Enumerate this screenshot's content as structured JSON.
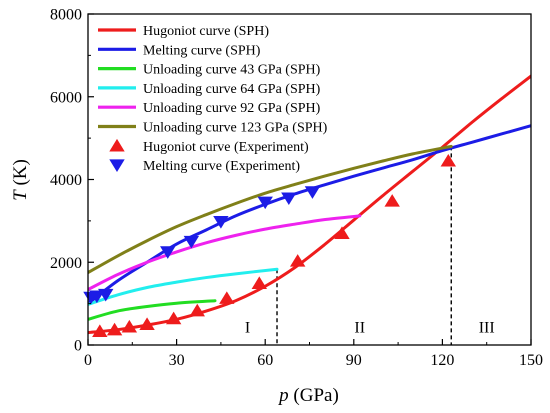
{
  "chart_data": {
    "type": "line",
    "xlabel": {
      "var": "p",
      "unit": " (GPa)"
    },
    "ylabel": {
      "var": "T",
      "unit": " (K)"
    },
    "xlim": [
      0,
      150
    ],
    "ylim": [
      0,
      8000
    ],
    "x_ticks": [
      0,
      30,
      60,
      90,
      120,
      150
    ],
    "y_ticks": [
      0,
      2000,
      4000,
      6000,
      8000
    ],
    "grid": false,
    "legend_position": "top-left",
    "series": [
      {
        "name": "Hugoniot curve (SPH)",
        "kind": "line",
        "color": "#ee1c1c",
        "x": [
          0,
          10,
          20,
          30,
          40,
          50,
          60,
          70,
          80,
          90,
          100,
          110,
          120,
          130,
          140,
          150
        ],
        "y": [
          300,
          370,
          480,
          620,
          820,
          1070,
          1420,
          1870,
          2420,
          3020,
          3620,
          4200,
          4780,
          5380,
          5950,
          6500
        ]
      },
      {
        "name": "Melting curve (SPH)",
        "kind": "line",
        "color": "#1c1ce6",
        "x": [
          0,
          10,
          20,
          30,
          40,
          50,
          60,
          70,
          80,
          90,
          100,
          110,
          120,
          130,
          140,
          150
        ],
        "y": [
          1000,
          1550,
          2000,
          2440,
          2780,
          3120,
          3400,
          3650,
          3870,
          4080,
          4280,
          4480,
          4700,
          4900,
          5100,
          5300
        ]
      },
      {
        "name": "Unloading curve 43 GPa (SPH)",
        "kind": "line",
        "color": "#22dd22",
        "x": [
          0,
          10,
          20,
          30,
          43
        ],
        "y": [
          620,
          820,
          930,
          1010,
          1070
        ]
      },
      {
        "name": "Unloading curve 64 GPa (SPH)",
        "kind": "line",
        "color": "#22eeee",
        "x": [
          0,
          10,
          20,
          30,
          40,
          50,
          64
        ],
        "y": [
          980,
          1210,
          1390,
          1520,
          1630,
          1720,
          1830
        ]
      },
      {
        "name": "Unloading curve 92 GPa (SPH)",
        "kind": "line",
        "color": "#ee22ee",
        "x": [
          0,
          10,
          20,
          30,
          40,
          50,
          60,
          70,
          80,
          92
        ],
        "y": [
          1340,
          1700,
          2000,
          2250,
          2470,
          2650,
          2800,
          2920,
          3030,
          3120
        ]
      },
      {
        "name": "Unloading curve 123 GPa (SPH)",
        "kind": "line",
        "color": "#808019",
        "x": [
          0,
          10,
          20,
          30,
          40,
          50,
          60,
          70,
          80,
          90,
          100,
          110,
          123
        ],
        "y": [
          1750,
          2150,
          2520,
          2860,
          3150,
          3420,
          3670,
          3880,
          4080,
          4270,
          4450,
          4620,
          4800
        ]
      },
      {
        "name": "Hugoniot curve (Experiment)",
        "kind": "marker",
        "marker": "triangle-up",
        "color": "#ee1c1c",
        "x": [
          4,
          9,
          14,
          20,
          29,
          37,
          47,
          58,
          71,
          86,
          103,
          122
        ],
        "y": [
          330,
          370,
          440,
          500,
          640,
          830,
          1130,
          1490,
          2030,
          2700,
          3480,
          4450
        ]
      },
      {
        "name": "Melting curve (Experiment)",
        "kind": "marker",
        "marker": "triangle-down",
        "color": "#1c1ce6",
        "x": [
          1,
          3,
          6,
          27,
          35,
          45,
          60,
          68,
          76
        ],
        "y": [
          1150,
          1180,
          1220,
          2250,
          2500,
          2980,
          3450,
          3550,
          3700
        ]
      }
    ],
    "verticals": [
      {
        "x": 64,
        "y_top": 1830
      },
      {
        "x": 123,
        "y_top": 4800
      }
    ],
    "region_labels": [
      {
        "text": "I",
        "x": 54,
        "y": 300
      },
      {
        "text": "II",
        "x": 92,
        "y": 300
      },
      {
        "text": "III",
        "x": 135,
        "y": 300
      }
    ]
  }
}
